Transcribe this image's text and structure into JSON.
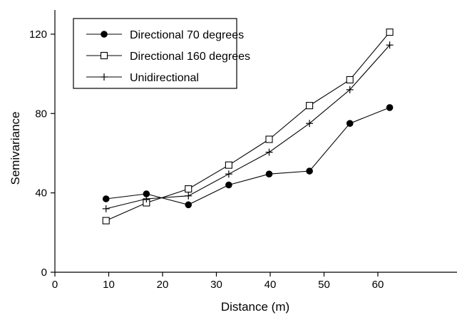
{
  "chart_data": {
    "type": "line",
    "xlabel": "Distance (m)",
    "ylabel": "Semivariance",
    "xlim": [
      0,
      70
    ],
    "ylim": [
      0,
      130
    ],
    "xticks": [
      "0",
      "10",
      "20",
      "30",
      "40",
      "50",
      "60"
    ],
    "yticks": [
      "0",
      "40",
      "80",
      "120"
    ],
    "legend_position": "top-left",
    "grid": false,
    "series": [
      {
        "name": "Directional 70 degrees",
        "marker": "filled-circle",
        "x": [
          9.5,
          17,
          24.8,
          32.3,
          39.8,
          47.3,
          54.8,
          62.2
        ],
        "y": [
          37,
          39.5,
          34,
          44,
          49.5,
          51,
          75,
          83
        ]
      },
      {
        "name": "Directional 160 degrees",
        "marker": "open-square",
        "x": [
          9.5,
          17,
          24.8,
          32.3,
          39.8,
          47.3,
          54.8,
          62.2
        ],
        "y": [
          26,
          35,
          42,
          54,
          67,
          84,
          97,
          121
        ]
      },
      {
        "name": "Unidirectional",
        "marker": "plus",
        "x": [
          9.5,
          17,
          24.8,
          32.3,
          39.8,
          47.3,
          54.8,
          62.2
        ],
        "y": [
          32,
          37,
          38.5,
          49.5,
          60.5,
          75,
          92,
          114.5
        ]
      }
    ]
  }
}
